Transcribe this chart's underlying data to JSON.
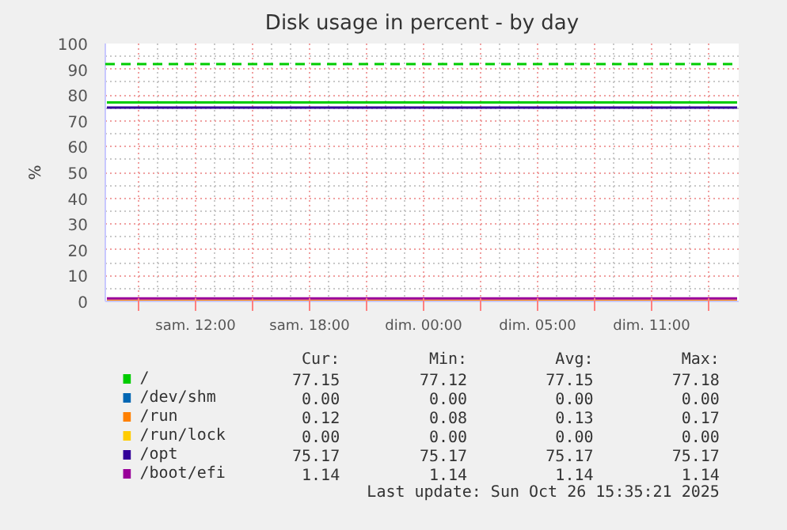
{
  "chart_data": {
    "type": "line",
    "title": "Disk usage in percent - by day",
    "ylabel": "%",
    "x": [
      "2025-10-25T05:20",
      "2025-10-26T14:30"
    ],
    "xlim": [
      "2025-10-25T05:15",
      "2025-10-26T14:35"
    ],
    "xticks": [
      {
        "value": "2025-10-25T07:00",
        "label": null
      },
      {
        "value": "2025-10-25T10:00",
        "label": "sam. 12:00"
      },
      {
        "value": "2025-10-25T13:00",
        "label": null
      },
      {
        "value": "2025-10-25T16:00",
        "label": "sam. 18:00"
      },
      {
        "value": "2025-10-25T19:00",
        "label": null
      },
      {
        "value": "2025-10-25T22:00",
        "label": "dim. 00:00"
      },
      {
        "value": "2025-10-26T01:00",
        "label": null
      },
      {
        "value": "2025-10-26T04:00",
        "label": "dim. 05:00"
      },
      {
        "value": "2025-10-26T07:00",
        "label": null
      },
      {
        "value": "2025-10-26T10:00",
        "label": "dim. 11:00"
      },
      {
        "value": "2025-10-26T13:00",
        "label": null
      }
    ],
    "ylim": [
      0,
      100
    ],
    "yticks": [
      0,
      10,
      20,
      30,
      40,
      50,
      60,
      70,
      80,
      90,
      100
    ],
    "grid": true,
    "legend": "bottom",
    "marker": "none",
    "line_style": "solid",
    "series": [
      {
        "name": "/",
        "color": "#00cc00",
        "values": [
          77.15,
          77.15
        ]
      },
      {
        "name": "/dev/shm",
        "color": "#0066b3",
        "values": [
          null,
          null
        ]
      },
      {
        "name": "/run",
        "color": "#ff8000",
        "values": [
          0.12,
          0.12
        ]
      },
      {
        "name": "/run/lock",
        "color": "#ffcc00",
        "values": [
          null,
          null
        ]
      },
      {
        "name": "/opt",
        "color": "#330099",
        "values": [
          75.17,
          75.17
        ]
      },
      {
        "name": "/boot/efi",
        "color": "#990099",
        "values": [
          1.14,
          1.14
        ]
      }
    ],
    "ref_lines": [
      {
        "axis": "y",
        "value": 92,
        "label": null,
        "color": "#00cc00",
        "line_style": "dashed"
      }
    ],
    "annotations": [
      "Cur:",
      "Min:",
      "Avg:",
      "Max:",
      "77.15",
      "77.12",
      "77.15",
      "77.18",
      "0.00",
      "0.00",
      "0.00",
      "0.00",
      "0.12",
      "0.08",
      "0.13",
      "0.17",
      "0.00",
      "0.00",
      "0.00",
      "0.00",
      "75.17",
      "75.17",
      "75.17",
      "75.17",
      "1.14",
      "1.14",
      "1.14",
      "1.14",
      "Last update: Sun Oct 26 15:35:21 2025"
    ]
  }
}
